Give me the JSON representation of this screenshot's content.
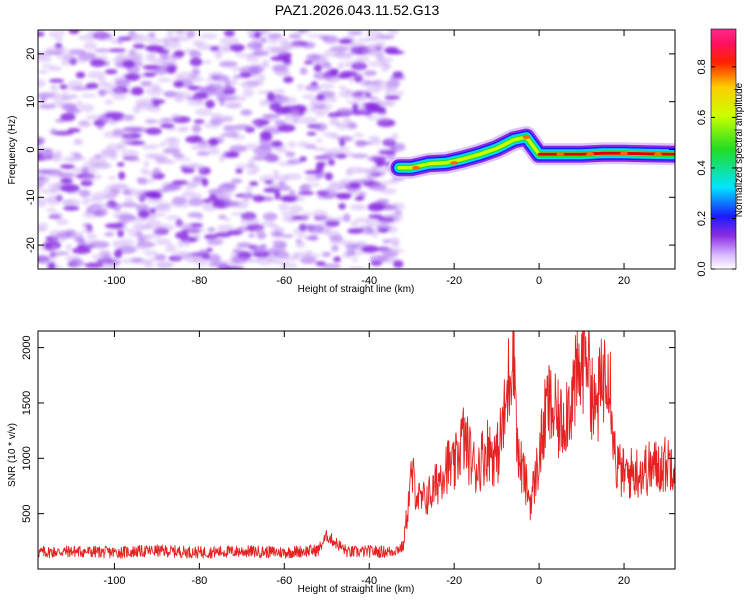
{
  "title": "PAZ1.2026.043.11.52.G13",
  "colors": {
    "trace": "#e52222",
    "blob": "#8a2be2",
    "blob_light": "#c9a6f5",
    "ridge_red": "#e00000"
  },
  "chart_data": [
    {
      "type": "heatmap",
      "name": "spectrogram",
      "xlabel": "Height of straight line (km)",
      "ylabel": "Frequency (Hz)",
      "xlim": [
        -118,
        32
      ],
      "ylim": [
        -25,
        25
      ],
      "xticks": [
        -100,
        -80,
        -60,
        -40,
        -20,
        0,
        20
      ],
      "yticks": [
        -20,
        -10,
        0,
        10,
        20
      ],
      "noise_region_x": [
        -118,
        -33
      ],
      "ridge": {
        "x": [
          -33,
          -30,
          -26,
          -22,
          -18,
          -14,
          -10,
          -6,
          -3,
          0,
          5,
          10,
          15,
          20,
          25,
          32
        ],
        "y": [
          -3.8,
          -3.8,
          -3,
          -2.8,
          -2,
          -1,
          0.2,
          2,
          2.6,
          -1,
          -1,
          -1,
          -0.8,
          -0.8,
          -0.9,
          -1
        ]
      }
    },
    {
      "type": "colorbar",
      "name": "amplitude-scale",
      "label": "Normalized spectral amplitude",
      "range": [
        0,
        0.95
      ],
      "ticks": [
        0.0,
        0.2,
        0.4,
        0.6,
        0.8
      ],
      "tick_labels": [
        "0.0",
        "0.2",
        "0.4",
        "0.6",
        "0.8"
      ]
    },
    {
      "type": "line",
      "name": "snr",
      "xlabel": "Height of straight line (km)",
      "ylabel": "SNR (10 * v/v)",
      "xlim": [
        -118,
        32
      ],
      "ylim": [
        0,
        2150
      ],
      "xticks": [
        -100,
        -80,
        -60,
        -40,
        -20,
        0,
        20
      ],
      "yticks": [
        500,
        1000,
        1500,
        2000
      ],
      "series": [
        {
          "name": "SNR",
          "x": [
            -118,
            -110,
            -100,
            -90,
            -80,
            -70,
            -60,
            -52,
            -50,
            -45,
            -40,
            -35,
            -32,
            -30,
            -28,
            -25,
            -22,
            -20,
            -18,
            -15,
            -12,
            -10,
            -8,
            -6,
            -5,
            -4,
            -2,
            0,
            2,
            5,
            8,
            10,
            11,
            13,
            15,
            16,
            17,
            18,
            20,
            25,
            30,
            32
          ],
          "y": [
            150,
            160,
            150,
            165,
            150,
            160,
            150,
            170,
            300,
            150,
            160,
            155,
            200,
            850,
            600,
            700,
            950,
            900,
            1200,
            900,
            1100,
            1000,
            1400,
            2150,
            1000,
            900,
            600,
            1000,
            1500,
            1300,
            1600,
            1800,
            2150,
            1400,
            1700,
            2000,
            1600,
            950,
            850,
            900,
            950,
            1000
          ]
        }
      ]
    }
  ]
}
